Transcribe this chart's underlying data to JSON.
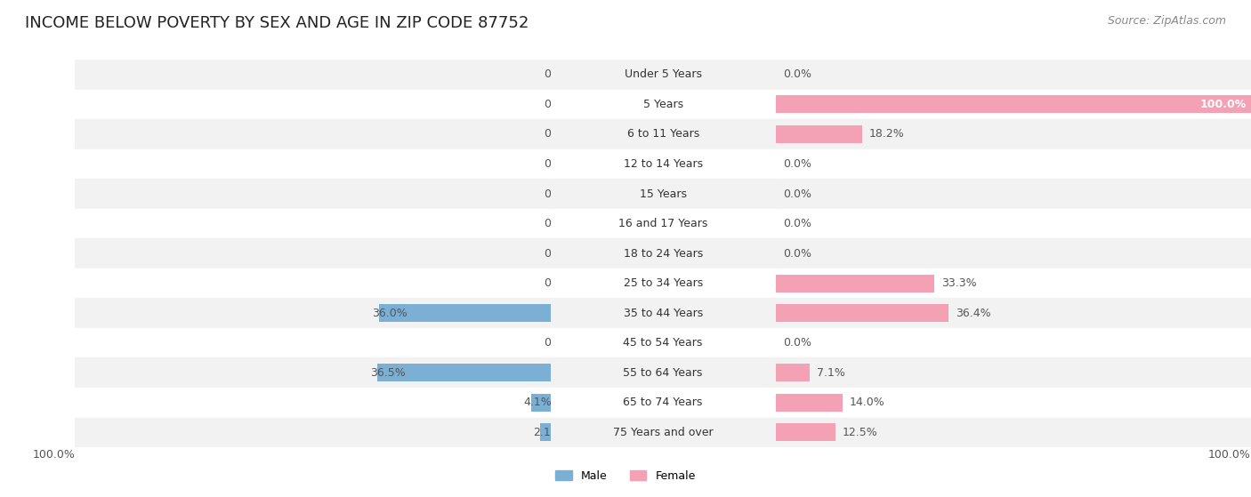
{
  "title": "INCOME BELOW POVERTY BY SEX AND AGE IN ZIP CODE 87752",
  "source": "Source: ZipAtlas.com",
  "categories": [
    "Under 5 Years",
    "5 Years",
    "6 to 11 Years",
    "12 to 14 Years",
    "15 Years",
    "16 and 17 Years",
    "18 to 24 Years",
    "25 to 34 Years",
    "35 to 44 Years",
    "45 to 54 Years",
    "55 to 64 Years",
    "65 to 74 Years",
    "75 Years and over"
  ],
  "male_values": [
    0.0,
    0.0,
    0.0,
    0.0,
    0.0,
    0.0,
    0.0,
    0.0,
    36.0,
    0.0,
    36.5,
    4.1,
    2.1
  ],
  "female_values": [
    0.0,
    100.0,
    18.2,
    0.0,
    0.0,
    0.0,
    0.0,
    33.3,
    36.4,
    0.0,
    7.1,
    14.0,
    12.5
  ],
  "male_color": "#7bafd4",
  "female_color": "#f4a0b5",
  "male_label": "Male",
  "female_label": "Female",
  "row_bg_colors": [
    "#f2f2f2",
    "#ffffff"
  ],
  "axis_label_left": "100.0%",
  "axis_label_right": "100.0%",
  "max_value": 100.0,
  "title_fontsize": 13,
  "source_fontsize": 9,
  "tick_fontsize": 9,
  "label_fontsize": 9,
  "category_fontsize": 9,
  "bar_height": 0.6
}
